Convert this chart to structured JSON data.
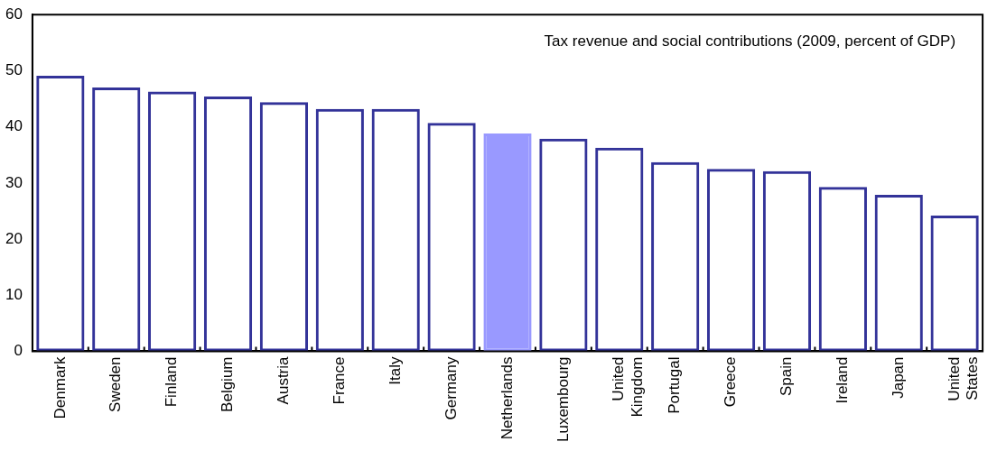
{
  "chart_data": {
    "type": "bar",
    "title": "Tax revenue and social contributions (2009, percent of GDP)",
    "categories": [
      "Denmark",
      "Sweden",
      "Finland",
      "Belgium",
      "Austria",
      "France",
      "Italy",
      "Germany",
      "Netherlands",
      "Luxembourg",
      "United Kingdom",
      "Portugal",
      "Greece",
      "Spain",
      "Ireland",
      "Japan",
      "United States"
    ],
    "values": [
      49.1,
      47.0,
      46.3,
      45.4,
      44.4,
      43.2,
      43.2,
      40.7,
      38.8,
      37.9,
      36.3,
      33.7,
      32.5,
      32.1,
      29.3,
      27.9,
      24.2
    ],
    "color": "#333399",
    "colors": [
      "#333399",
      "#333399",
      "#333399",
      "#333399",
      "#333399",
      "#333399",
      "#333399",
      "#333399",
      "#9999ff",
      "#333399",
      "#333399",
      "#333399",
      "#333399",
      "#333399",
      "#333399",
      "#333399",
      "#333399"
    ],
    "ylim": [
      0,
      60
    ],
    "yticks": [
      0,
      10,
      20,
      30,
      40,
      50,
      60
    ],
    "grid": false,
    "legend": false
  }
}
